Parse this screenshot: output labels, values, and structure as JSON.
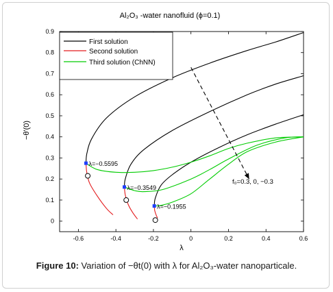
{
  "chart_data": {
    "type": "line",
    "title": "Al₂O₃ -water nanofluid (ϕ=0.1)",
    "xlabel": "λ",
    "ylabel": "−θ'(0)",
    "xlim": [
      -0.7,
      0.6
    ],
    "ylim": [
      -0.05,
      0.9
    ],
    "xticks": [
      "-0.6",
      "-0.4",
      "-0.2",
      "0",
      "0.2",
      "0.4",
      "0.6"
    ],
    "yticks": [
      "0",
      "0.1",
      "0.2",
      "0.3",
      "0.4",
      "0.5",
      "0.6",
      "0.7",
      "0.8",
      "0.9"
    ],
    "xtick_values": [
      -0.6,
      -0.4,
      -0.2,
      0,
      0.2,
      0.4,
      0.6
    ],
    "ytick_values": [
      0,
      0.1,
      0.2,
      0.3,
      0.4,
      0.5,
      0.6,
      0.7,
      0.8,
      0.9
    ],
    "legend": {
      "placement": "top-left",
      "entries": [
        {
          "label": "First solution",
          "color": "#000000"
        },
        {
          "label": "Second  solution",
          "color": "#e31a1c"
        },
        {
          "label": "Third solution (ChNN)",
          "color": "#00cc00"
        }
      ]
    },
    "series": [
      {
        "name": "First solution",
        "color": "#000000",
        "group": "fw=0.3",
        "points": [
          [
            -0.5595,
            0.275
          ],
          [
            -0.555,
            0.32
          ],
          [
            -0.53,
            0.39
          ],
          [
            -0.45,
            0.49
          ],
          [
            -0.3,
            0.59
          ],
          [
            -0.1,
            0.68
          ],
          [
            0.1,
            0.75
          ],
          [
            0.3,
            0.81
          ],
          [
            0.45,
            0.85
          ],
          [
            0.6,
            0.895
          ]
        ]
      },
      {
        "name": "First solution",
        "color": "#000000",
        "group": "fw=0",
        "points": [
          [
            -0.3549,
            0.162
          ],
          [
            -0.35,
            0.2
          ],
          [
            -0.32,
            0.27
          ],
          [
            -0.25,
            0.34
          ],
          [
            -0.1,
            0.43
          ],
          [
            0.1,
            0.52
          ],
          [
            0.3,
            0.6
          ],
          [
            0.45,
            0.65
          ],
          [
            0.6,
            0.69
          ]
        ]
      },
      {
        "name": "First solution",
        "color": "#000000",
        "group": "fw=-0.3",
        "points": [
          [
            -0.1955,
            0.072
          ],
          [
            -0.19,
            0.11
          ],
          [
            -0.16,
            0.17
          ],
          [
            -0.1,
            0.22
          ],
          [
            0,
            0.28
          ],
          [
            0.15,
            0.35
          ],
          [
            0.3,
            0.41
          ],
          [
            0.45,
            0.46
          ],
          [
            0.6,
            0.505
          ]
        ]
      },
      {
        "name": "Second  solution",
        "color": "#e31a1c",
        "group": "fw=0.3",
        "points": [
          [
            -0.5595,
            0.275
          ],
          [
            -0.555,
            0.23
          ],
          [
            -0.54,
            0.18
          ],
          [
            -0.5,
            0.12
          ],
          [
            -0.45,
            0.06
          ],
          [
            -0.415,
            0.03
          ]
        ]
      },
      {
        "name": "Second  solution",
        "color": "#e31a1c",
        "group": "fw=0",
        "points": [
          [
            -0.3549,
            0.162
          ],
          [
            -0.35,
            0.125
          ],
          [
            -0.335,
            0.08
          ],
          [
            -0.31,
            0.04
          ],
          [
            -0.285,
            0.01
          ]
        ]
      },
      {
        "name": "Second  solution",
        "color": "#e31a1c",
        "group": "fw=-0.3",
        "points": [
          [
            -0.1955,
            0.072
          ],
          [
            -0.193,
            0.05
          ],
          [
            -0.186,
            0.03
          ],
          [
            -0.178,
            0.015
          ]
        ]
      },
      {
        "name": "Third solution (ChNN)",
        "color": "#00cc00",
        "group": "fw=0.3",
        "points": [
          [
            -0.5595,
            0.275
          ],
          [
            -0.5,
            0.245
          ],
          [
            -0.4,
            0.232
          ],
          [
            -0.3,
            0.232
          ],
          [
            -0.2,
            0.24
          ],
          [
            -0.1,
            0.256
          ],
          [
            0,
            0.28
          ],
          [
            0.1,
            0.31
          ],
          [
            0.2,
            0.345
          ],
          [
            0.3,
            0.37
          ],
          [
            0.45,
            0.395
          ],
          [
            0.6,
            0.4
          ]
        ]
      },
      {
        "name": "Third solution (ChNN)",
        "color": "#00cc00",
        "group": "fw=0",
        "points": [
          [
            -0.3549,
            0.162
          ],
          [
            -0.3,
            0.145
          ],
          [
            -0.25,
            0.14
          ],
          [
            -0.15,
            0.15
          ],
          [
            0,
            0.2
          ],
          [
            0.1,
            0.245
          ],
          [
            0.2,
            0.295
          ],
          [
            0.35,
            0.36
          ],
          [
            0.5,
            0.395
          ],
          [
            0.6,
            0.4
          ]
        ]
      },
      {
        "name": "Third solution (ChNN)",
        "color": "#00cc00",
        "group": "fw=-0.3",
        "points": [
          [
            -0.1955,
            0.072
          ],
          [
            -0.16,
            0.075
          ],
          [
            -0.1,
            0.09
          ],
          [
            0,
            0.13
          ],
          [
            0.1,
            0.2
          ],
          [
            0.2,
            0.27
          ],
          [
            0.3,
            0.33
          ],
          [
            0.45,
            0.375
          ],
          [
            0.6,
            0.4
          ]
        ]
      }
    ],
    "turning_points": [
      {
        "x": -0.5595,
        "y": 0.275,
        "label": "λ=−0.5595"
      },
      {
        "x": -0.3549,
        "y": 0.162,
        "label": "λ=−0.3549"
      },
      {
        "x": -0.1955,
        "y": 0.072,
        "label": "λ=−0.1955"
      }
    ],
    "open_markers": [
      {
        "x": -0.55,
        "y": 0.215
      },
      {
        "x": -0.345,
        "y": 0.1
      },
      {
        "x": -0.19,
        "y": 0.005
      }
    ],
    "annotation": {
      "text": "f₀=0.3,  0, −0.3",
      "arrow_from": {
        "x": 0.0,
        "y": 0.73
      },
      "arrow_to": {
        "x": 0.31,
        "y": 0.2
      }
    }
  },
  "caption": {
    "prefix": "Figure 10:",
    "text": " Variation of −θt(0) with λ for Al₂O₃-water nanoparticale."
  }
}
